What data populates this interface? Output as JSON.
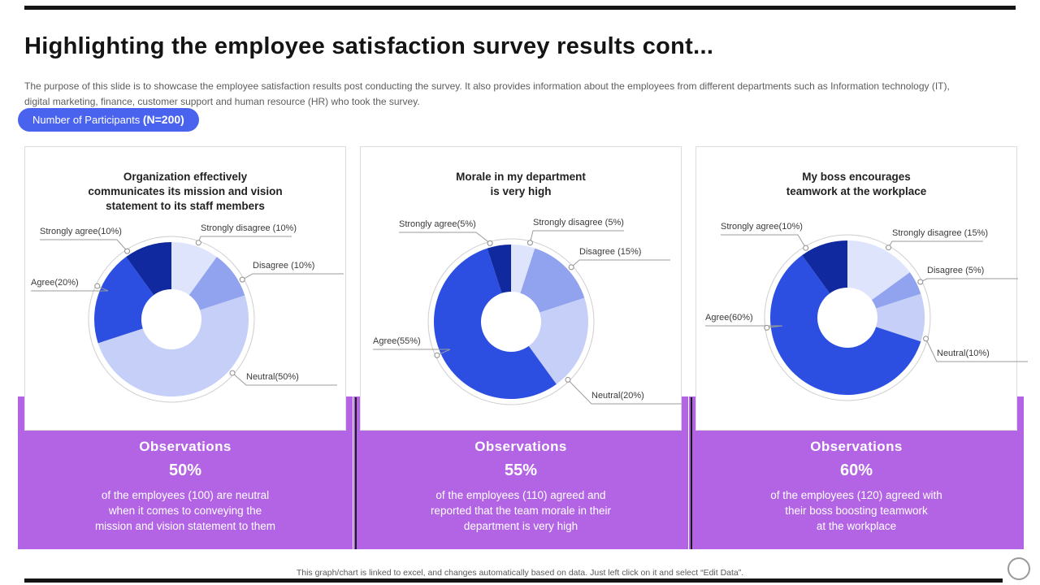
{
  "slide": {
    "title": "Highlighting the employee satisfaction survey results cont...",
    "description": "The purpose of this slide is to showcase the employee satisfaction results post conducting the survey. It also provides information about the employees from different departments such as Information technology (IT), digital marketing, finance, customer support and human resource (HR) who took the survey.",
    "participants_badge": {
      "text": "Number of Participants ",
      "count": "(N=200)"
    },
    "footer_note": "This graph/chart is linked to excel, and changes automatically based on data. Just left click on it and select “Edit Data”."
  },
  "colors": {
    "strongly_agree": "#10299e",
    "agree": "#2c4fe2",
    "neutral": "#c5cff7",
    "disagree": "#91a2ef",
    "strongly_disagree": "#dee4fb",
    "accent_purple": "#b264e4",
    "badge_blue": "#4a63ef"
  },
  "chart_data": [
    {
      "type": "pie",
      "title": "Organization effectively\ncommunicates its mission and vision\nstatement to its staff members",
      "legend_position": "none",
      "slices": [
        {
          "key": "strongly_disagree",
          "display": "Strongly disagree (10%)",
          "value": 10
        },
        {
          "key": "disagree",
          "display": "Disagree (10%)",
          "value": 10
        },
        {
          "key": "neutral",
          "display": "Neutral(50%)",
          "value": 50
        },
        {
          "key": "agree",
          "display": "Agree(20%)",
          "value": 20
        },
        {
          "key": "strongly_agree",
          "display": "Strongly agree(10%)",
          "value": 10
        }
      ],
      "observation": {
        "heading": "Observations",
        "percent": "50%",
        "text": "of the employees (100) are neutral\nwhen it comes to conveying the\nmission and vision statement to them"
      }
    },
    {
      "type": "pie",
      "title": "Morale in my department\nis very high",
      "legend_position": "none",
      "slices": [
        {
          "key": "strongly_disagree",
          "display": "Strongly disagree (5%)",
          "value": 5
        },
        {
          "key": "disagree",
          "display": "Disagree (15%)",
          "value": 15
        },
        {
          "key": "neutral",
          "display": "Neutral(20%)",
          "value": 20
        },
        {
          "key": "agree",
          "display": "Agree(55%)",
          "value": 55
        },
        {
          "key": "strongly_agree",
          "display": "Strongly agree(5%)",
          "value": 5
        }
      ],
      "observation": {
        "heading": "Observations",
        "percent": "55%",
        "text": "of the employees (110) agreed and\nreported that the team morale in their\ndepartment is very high"
      }
    },
    {
      "type": "pie",
      "title": "My boss encourages\nteamwork at the workplace",
      "legend_position": "none",
      "slices": [
        {
          "key": "strongly_disagree",
          "display": "Strongly disagree (15%)",
          "value": 15
        },
        {
          "key": "disagree",
          "display": "Disagree (5%)",
          "value": 5
        },
        {
          "key": "neutral",
          "display": "Neutral(10%)",
          "value": 10
        },
        {
          "key": "agree",
          "display": "Agree(60%)",
          "value": 60
        },
        {
          "key": "strongly_agree",
          "display": "Strongly agree(10%)",
          "value": 10
        }
      ],
      "observation": {
        "heading": "Observations",
        "percent": "60%",
        "text": "of the employees (120) agreed with\ntheir boss boosting teamwork\nat the workplace"
      }
    }
  ]
}
